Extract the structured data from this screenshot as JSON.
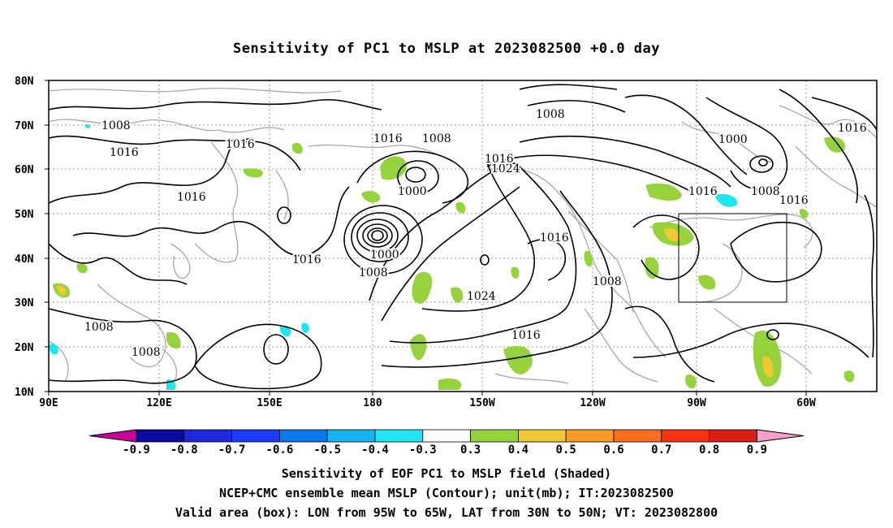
{
  "title": "Sensitivity of PC1 to MSLP at 2023082500 +0.0 day",
  "map": {
    "lat_ticks": [
      "80N",
      "70N",
      "60N",
      "50N",
      "40N",
      "30N",
      "20N",
      "10N"
    ],
    "lon_ticks": [
      "90E",
      "120E",
      "150E",
      "180",
      "150W",
      "120W",
      "90W",
      "60W"
    ],
    "valid_box": {
      "lon_from": "95W",
      "lon_to": "65W",
      "lat_from": "30N",
      "lat_to": "50N"
    },
    "contour_labels": [
      "1008",
      "1016",
      "1016",
      "1016",
      "1016",
      "1008",
      "1000",
      "1016",
      "1024",
      "1000",
      "1008",
      "1008",
      "1016",
      "1024",
      "1016",
      "1008",
      "1016",
      "1016",
      "1016",
      "1000",
      "1008",
      "1008",
      "1008",
      "1016"
    ]
  },
  "colorbar": {
    "labels": [
      "-0.9",
      "-0.8",
      "-0.7",
      "-0.6",
      "-0.5",
      "-0.4",
      "-0.3",
      "0.3",
      "0.4",
      "0.5",
      "0.6",
      "0.7",
      "0.8",
      "0.9"
    ],
    "colors": [
      "#0a0aa0",
      "#1e28dc",
      "#1e3cff",
      "#0a78f0",
      "#14b4f0",
      "#1ee6f0",
      "#ffffff",
      "#96d23c",
      "#f0c832",
      "#fa9b28",
      "#fa6e1e",
      "#fa3214",
      "#dc1e14"
    ],
    "low_arrow_color": "#c8009b",
    "high_arrow_color": "#f5a0c8"
  },
  "captions": [
    "Sensitivity of EOF PC1 to MSLP field (Shaded)",
    "NCEP+CMC ensemble mean MSLP (Contour); unit(mb); IT:2023082500",
    "Valid area (box): LON from 95W to 65W, LAT from 30N to 50N; VT: 2023082800"
  ]
}
